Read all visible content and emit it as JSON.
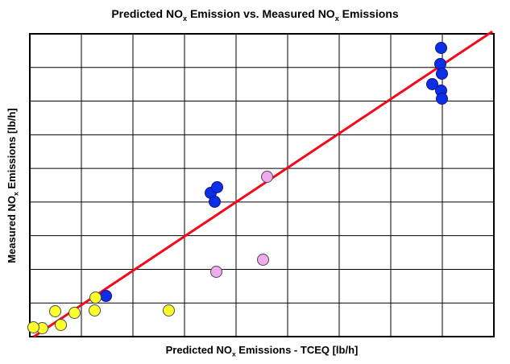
{
  "title": {
    "part1": "Predicted NO",
    "sub1": "x",
    "part2": " Emission vs. Measured NO",
    "sub2": "x",
    "part3": " Emissions"
  },
  "x_axis": {
    "part1": "Predicted NO",
    "sub": "x",
    "part2": " Emissions - TCEQ [lb/h]"
  },
  "y_axis": {
    "part1": "Measured NO",
    "sub": "x",
    "part2": " Emissions [lb/h]"
  },
  "chart_data": {
    "type": "scatter",
    "title": "Predicted NOx Emission vs. Measured NOx Emissions",
    "xlabel": "Predicted NOx Emissions - TCEQ [lb/h]",
    "ylabel": "Measured NOx Emissions [lb/h]",
    "xlim": [
      0,
      9
    ],
    "ylim": [
      0,
      9
    ],
    "grid": true,
    "grid_step": 1,
    "tick_labels": "none (axes show an unlabeled 9x9 grid; point values are in grid-division units)",
    "legend": "none",
    "grid_color": "#000000",
    "background": "#ffffff",
    "parity_line": {
      "color": "#f5081c",
      "width": 3,
      "from": [
        0.08,
        0.0
      ],
      "to": [
        8.97,
        9.07
      ]
    },
    "series": [
      {
        "name": "blue",
        "marker": "circle",
        "fill": "#0b2fe8",
        "stroke": "#12127d",
        "points": [
          [
            7.98,
            8.57
          ],
          [
            7.97,
            8.09
          ],
          [
            8.0,
            7.8
          ],
          [
            7.81,
            7.49
          ],
          [
            7.98,
            7.3
          ],
          [
            8.0,
            7.06
          ],
          [
            3.52,
            4.26
          ],
          [
            3.64,
            4.43
          ],
          [
            3.59,
            4.0
          ],
          [
            1.48,
            1.2
          ]
        ]
      },
      {
        "name": "pink",
        "marker": "circle",
        "fill": "#efaaef",
        "stroke": "#4a4a4a",
        "points": [
          [
            4.61,
            4.74
          ],
          [
            4.53,
            2.27
          ],
          [
            3.63,
            1.91
          ]
        ]
      },
      {
        "name": "yellow",
        "marker": "circle",
        "fill": "#ffff2e",
        "stroke": "#4a4a4a",
        "points": [
          [
            0.25,
            0.24
          ],
          [
            0.08,
            0.26
          ],
          [
            0.5,
            0.74
          ],
          [
            0.61,
            0.34
          ],
          [
            0.88,
            0.69
          ],
          [
            1.27,
            0.77
          ],
          [
            1.28,
            1.15
          ],
          [
            2.7,
            0.77
          ]
        ]
      }
    ]
  }
}
